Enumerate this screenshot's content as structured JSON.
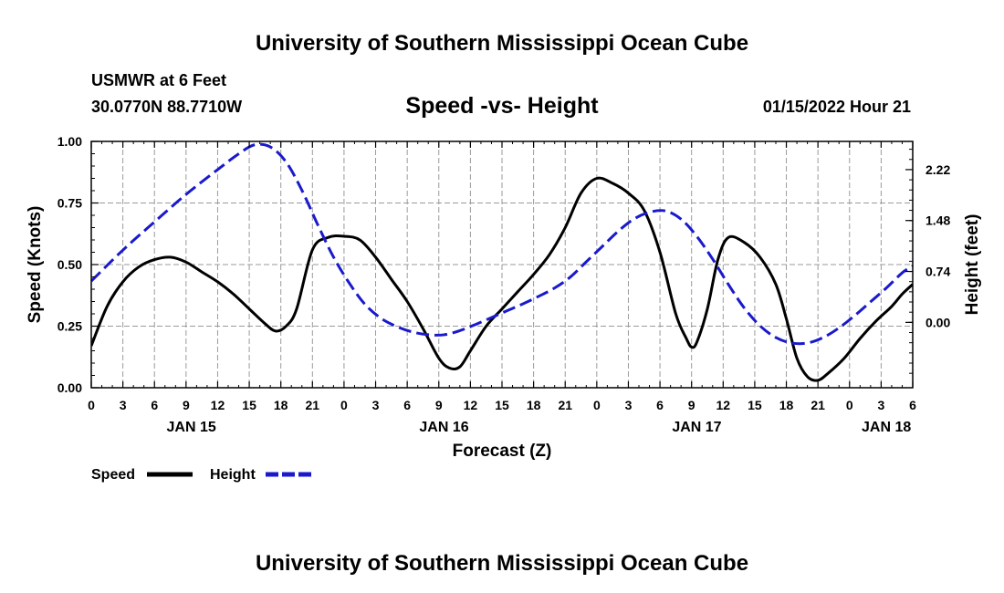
{
  "header": {
    "title": "University of Southern Mississippi Ocean Cube",
    "station_name": "USMWR at 6 Feet",
    "station_coords": "30.0770N  88.7710W",
    "timestamp": "01/15/2022 Hour 21"
  },
  "footer": {
    "title": "University of Southern Mississippi Ocean Cube"
  },
  "legend": {
    "speed_label": "Speed",
    "height_label": "Height"
  },
  "colors": {
    "speed": "#000000",
    "height": "#1a1acc",
    "grid": "#9a9a9a"
  },
  "chart_data": {
    "type": "line",
    "title": "Speed -vs- Height",
    "xlabel": "Forecast (Z)",
    "ylabel_left": "Speed (Knots)",
    "ylabel_right": "Height (feet)",
    "x_unit": "hours since JAN 15 00Z",
    "xlim": [
      0,
      78
    ],
    "ylim_left": [
      0,
      1.0
    ],
    "ylim_right": [
      -0.95,
      2.63
    ],
    "x_ticks": [
      0,
      3,
      6,
      9,
      12,
      15,
      18,
      21,
      24,
      27,
      30,
      33,
      36,
      39,
      42,
      45,
      48,
      51,
      54,
      57,
      60,
      63,
      66,
      69,
      72,
      75,
      78
    ],
    "x_tick_labels": [
      "0",
      "3",
      "6",
      "9",
      "12",
      "15",
      "18",
      "21",
      "0",
      "3",
      "6",
      "9",
      "12",
      "15",
      "18",
      "21",
      "0",
      "3",
      "6",
      "9",
      "12",
      "15",
      "18",
      "21",
      "0",
      "3",
      "6"
    ],
    "y_left_ticks": [
      0,
      0.25,
      0.5,
      0.75,
      1.0
    ],
    "y_left_tick_labels": [
      "0.00",
      "0.25",
      "0.50",
      "0.75",
      "1.00"
    ],
    "y_right_ticks": [
      0,
      0.74,
      1.48,
      2.22
    ],
    "y_right_tick_labels": [
      "0.00",
      "0.74",
      "1.48",
      "2.22"
    ],
    "date_labels": [
      {
        "x": 9.5,
        "label": "JAN 15"
      },
      {
        "x": 33.5,
        "label": "JAN 16"
      },
      {
        "x": 57.5,
        "label": "JAN 17"
      },
      {
        "x": 75.5,
        "label": "JAN 18"
      }
    ],
    "grid": true,
    "legend_position": "bottom-left",
    "series": [
      {
        "name": "Speed",
        "axis": "left",
        "style": "solid",
        "x": [
          0,
          1.5,
          3,
          4.5,
          6,
          7.5,
          9,
          10.5,
          12,
          13.5,
          15,
          16.5,
          17.5,
          18.5,
          19.5,
          21,
          22.5,
          24,
          25.5,
          27,
          28.5,
          30,
          31.5,
          33,
          34,
          35,
          36,
          37.5,
          39,
          40.5,
          42,
          43.5,
          45,
          46.5,
          48,
          49.5,
          51,
          52.5,
          54,
          55.5,
          56.5,
          57,
          57.5,
          58.5,
          59.5,
          60.5,
          62,
          63.5,
          65,
          66,
          67,
          68,
          69,
          70,
          71.5,
          73,
          74.5,
          76,
          77,
          78
        ],
        "values": [
          0.17,
          0.33,
          0.43,
          0.49,
          0.52,
          0.53,
          0.51,
          0.47,
          0.43,
          0.38,
          0.32,
          0.26,
          0.23,
          0.25,
          0.32,
          0.56,
          0.61,
          0.615,
          0.6,
          0.53,
          0.44,
          0.35,
          0.24,
          0.12,
          0.08,
          0.085,
          0.15,
          0.25,
          0.32,
          0.39,
          0.46,
          0.54,
          0.65,
          0.79,
          0.85,
          0.83,
          0.79,
          0.72,
          0.55,
          0.3,
          0.2,
          0.165,
          0.185,
          0.32,
          0.52,
          0.61,
          0.59,
          0.53,
          0.42,
          0.28,
          0.12,
          0.045,
          0.03,
          0.06,
          0.12,
          0.2,
          0.27,
          0.33,
          0.38,
          0.42
        ]
      },
      {
        "name": "Height",
        "axis": "right",
        "style": "dashed",
        "x": [
          0,
          3,
          6,
          9,
          12,
          14,
          15.5,
          17,
          18.5,
          20,
          21.5,
          23,
          24.5,
          26,
          27.5,
          29,
          30.5,
          32,
          33.5,
          35,
          36.5,
          38,
          39.5,
          41,
          42.5,
          44,
          45.5,
          47,
          48.5,
          50,
          51.5,
          53,
          54.5,
          56,
          57.5,
          59,
          60.5,
          62,
          63.5,
          65,
          66.5,
          68,
          69.5,
          71,
          72.5,
          74,
          75.5,
          77,
          78
        ],
        "values": [
          0.6,
          1.05,
          1.46,
          1.86,
          2.22,
          2.45,
          2.58,
          2.55,
          2.33,
          1.92,
          1.42,
          0.95,
          0.57,
          0.26,
          0.06,
          -0.06,
          -0.14,
          -0.18,
          -0.18,
          -0.12,
          -0.03,
          0.07,
          0.17,
          0.27,
          0.38,
          0.5,
          0.66,
          0.88,
          1.1,
          1.32,
          1.5,
          1.6,
          1.62,
          1.5,
          1.25,
          0.92,
          0.55,
          0.21,
          -0.05,
          -0.22,
          -0.3,
          -0.3,
          -0.22,
          -0.08,
          0.1,
          0.3,
          0.5,
          0.72,
          0.82
        ]
      }
    ]
  }
}
